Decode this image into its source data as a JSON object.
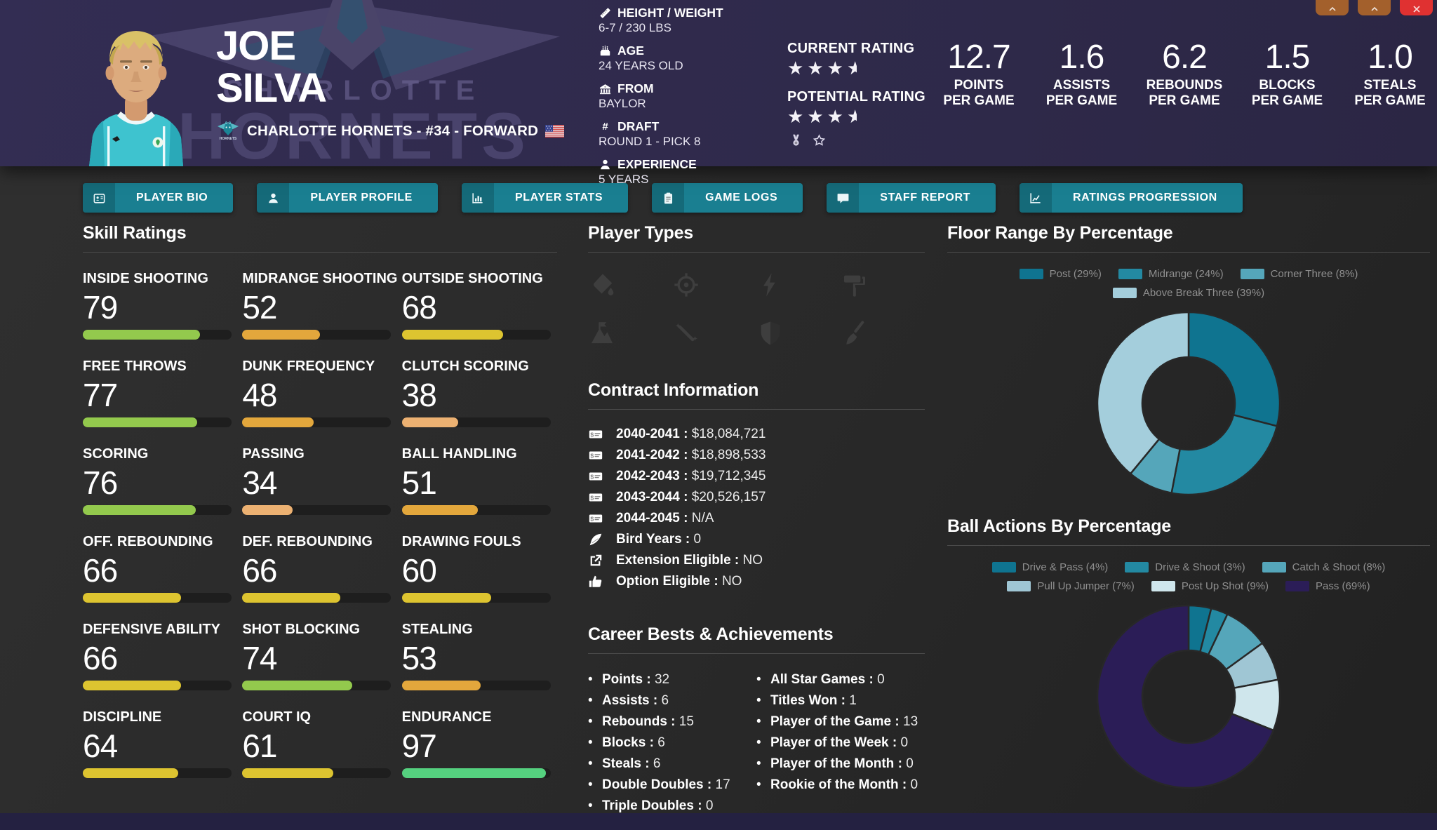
{
  "window": {
    "controls": [
      {
        "name": "nav-button-1",
        "icon": "chevron-icon",
        "color": "#a3602c"
      },
      {
        "name": "nav-button-2",
        "icon": "chevron-icon",
        "color": "#a3602c"
      },
      {
        "name": "close-button",
        "icon": "close-icon",
        "color": "#e03131"
      }
    ]
  },
  "header": {
    "first_name": "JOE",
    "last_name": "SILVA",
    "team_line": "CHARLOTTE HORNETS - #34 - FORWARD",
    "info": [
      {
        "icon": "ruler-icon",
        "label": "HEIGHT / WEIGHT",
        "value": "6-7 / 230 LBS"
      },
      {
        "icon": "cake-icon",
        "label": "AGE",
        "value": "24 YEARS OLD"
      },
      {
        "icon": "school-icon",
        "label": "FROM",
        "value": "BAYLOR"
      },
      {
        "icon": "hash-icon",
        "label": "DRAFT",
        "value": "ROUND 1 - PICK 8"
      },
      {
        "icon": "experience-icon",
        "label": "EXPERIENCE",
        "value": "5 YEARS"
      }
    ],
    "ratings": [
      {
        "label": "CURRENT RATING",
        "stars": 3.5
      },
      {
        "label": "POTENTIAL RATING",
        "stars": 3.5
      }
    ],
    "achievement_icons": [
      "medal-icon",
      "star-outline-icon"
    ],
    "per_game": [
      {
        "value": "12.7",
        "label": "POINTS",
        "sub": "PER GAME"
      },
      {
        "value": "1.6",
        "label": "ASSISTS",
        "sub": "PER GAME"
      },
      {
        "value": "6.2",
        "label": "REBOUNDS",
        "sub": "PER GAME"
      },
      {
        "value": "1.5",
        "label": "BLOCKS",
        "sub": "PER GAME"
      },
      {
        "value": "1.0",
        "label": "STEALS",
        "sub": "PER GAME"
      }
    ]
  },
  "tabs": [
    {
      "label": "PLAYER BIO",
      "icon": "id-card-icon"
    },
    {
      "label": "PLAYER PROFILE",
      "icon": "profile-icon"
    },
    {
      "label": "PLAYER STATS",
      "icon": "stats-icon"
    },
    {
      "label": "GAME LOGS",
      "icon": "game-logs-icon"
    },
    {
      "label": "STAFF REPORT",
      "icon": "staff-report-icon"
    },
    {
      "label": "RATINGS PROGRESSION",
      "icon": "progression-icon"
    }
  ],
  "skills": {
    "title": "Skill Ratings",
    "items": [
      {
        "label": "INSIDE SHOOTING",
        "value": 79,
        "color": "#93c94d"
      },
      {
        "label": "MIDRANGE SHOOTING",
        "value": 52,
        "color": "#e3a73c"
      },
      {
        "label": "OUTSIDE SHOOTING",
        "value": 68,
        "color": "#ddc430"
      },
      {
        "label": "FREE THROWS",
        "value": 77,
        "color": "#93c94d"
      },
      {
        "label": "DUNK FREQUENCY",
        "value": 48,
        "color": "#e3a73c"
      },
      {
        "label": "CLUTCH SCORING",
        "value": 38,
        "color": "#ecb172"
      },
      {
        "label": "SCORING",
        "value": 76,
        "color": "#93c94d"
      },
      {
        "label": "PASSING",
        "value": 34,
        "color": "#ecb172"
      },
      {
        "label": "BALL HANDLING",
        "value": 51,
        "color": "#e3a73c"
      },
      {
        "label": "OFF. REBOUNDING",
        "value": 66,
        "color": "#ddc430"
      },
      {
        "label": "DEF. REBOUNDING",
        "value": 66,
        "color": "#ddc430"
      },
      {
        "label": "DRAWING FOULS",
        "value": 60,
        "color": "#ddc430"
      },
      {
        "label": "DEFENSIVE ABILITY",
        "value": 66,
        "color": "#ddc430"
      },
      {
        "label": "SHOT BLOCKING",
        "value": 74,
        "color": "#93c94d"
      },
      {
        "label": "STEALING",
        "value": 53,
        "color": "#e3a73c"
      },
      {
        "label": "DISCIPLINE",
        "value": 64,
        "color": "#ddc430"
      },
      {
        "label": "COURT IQ",
        "value": 61,
        "color": "#ddc430"
      },
      {
        "label": "ENDURANCE",
        "value": 97,
        "color": "#55d17f"
      }
    ]
  },
  "player_types": {
    "title": "Player Types",
    "items": [
      {
        "icon": "dunk-icon"
      },
      {
        "icon": "target-icon"
      },
      {
        "icon": "bolt-icon"
      },
      {
        "icon": "paint-roller-icon"
      },
      {
        "icon": "mountain-icon"
      },
      {
        "icon": "wand-icon"
      },
      {
        "icon": "shield-icon"
      },
      {
        "icon": "broom-icon"
      }
    ]
  },
  "contract": {
    "title": "Contract Information",
    "rows": [
      {
        "icon": "money-check-icon",
        "label": "2040-2041",
        "value": "$18,084,721"
      },
      {
        "icon": "money-check-icon",
        "label": "2041-2042",
        "value": "$18,898,533"
      },
      {
        "icon": "money-check-icon",
        "label": "2042-2043",
        "value": "$19,712,345"
      },
      {
        "icon": "money-check-icon",
        "label": "2043-2044",
        "value": "$20,526,157"
      },
      {
        "icon": "money-check-icon",
        "label": "2044-2045",
        "value": "N/A"
      },
      {
        "icon": "feather-icon",
        "label": "Bird Years",
        "value": "0"
      },
      {
        "icon": "external-link-icon",
        "label": "Extension Eligible",
        "value": "NO"
      },
      {
        "icon": "thumbs-up-icon",
        "label": "Option Eligible",
        "value": "NO"
      }
    ]
  },
  "career": {
    "title": "Career Bests & Achievements",
    "left": [
      {
        "label": "Points",
        "value": "32"
      },
      {
        "label": "Assists",
        "value": "6"
      },
      {
        "label": "Rebounds",
        "value": "15"
      },
      {
        "label": "Blocks",
        "value": "6"
      },
      {
        "label": "Steals",
        "value": "6"
      },
      {
        "label": "Double Doubles",
        "value": "17"
      },
      {
        "label": "Triple Doubles",
        "value": "0"
      }
    ],
    "right": [
      {
        "label": "All Star Games",
        "value": "0"
      },
      {
        "label": "Titles Won",
        "value": "1"
      },
      {
        "label": "Player of the Game",
        "value": "13"
      },
      {
        "label": "Player of the Week",
        "value": "0"
      },
      {
        "label": "Player of the Month",
        "value": "0"
      },
      {
        "label": "Rookie of the Month",
        "value": "0"
      }
    ]
  },
  "chart_data": [
    {
      "type": "pie",
      "donut": true,
      "title": "Floor Range By Percentage",
      "labels": [
        "Post",
        "Midrange",
        "Corner Three",
        "Above Break Three"
      ],
      "values": [
        29,
        24,
        8,
        39
      ],
      "legend_labels": [
        "Post (29%)",
        "Midrange (24%)",
        "Corner Three (8%)",
        "Above Break Three (39%)"
      ],
      "colors": [
        "#0f7490",
        "#2389a2",
        "#55a6ba",
        "#a4cedc"
      ],
      "legend_position": "top"
    },
    {
      "type": "pie",
      "donut": true,
      "title": "Ball Actions By Percentage",
      "labels": [
        "Drive & Pass",
        "Drive & Shoot",
        "Catch & Shoot",
        "Pull Up Jumper",
        "Post Up Shot",
        "Pass"
      ],
      "values": [
        4,
        3,
        8,
        7,
        9,
        69
      ],
      "legend_labels": [
        "Drive & Pass (4%)",
        "Drive & Shoot (3%)",
        "Catch & Shoot (8%)",
        "Pull Up Jumper (7%)",
        "Post Up Shot (9%)",
        "Pass (69%)"
      ],
      "colors": [
        "#0f7490",
        "#2389a2",
        "#55a6ba",
        "#9fc6d4",
        "#cfe6ec",
        "#2b1d57"
      ],
      "legend_position": "top"
    }
  ],
  "colors": {
    "header_bg": "#2e2949",
    "body_bg": "#282828",
    "accent_teal": "#1a7f91",
    "bottom_bar": "#242141",
    "star": "#f4f2f8"
  }
}
